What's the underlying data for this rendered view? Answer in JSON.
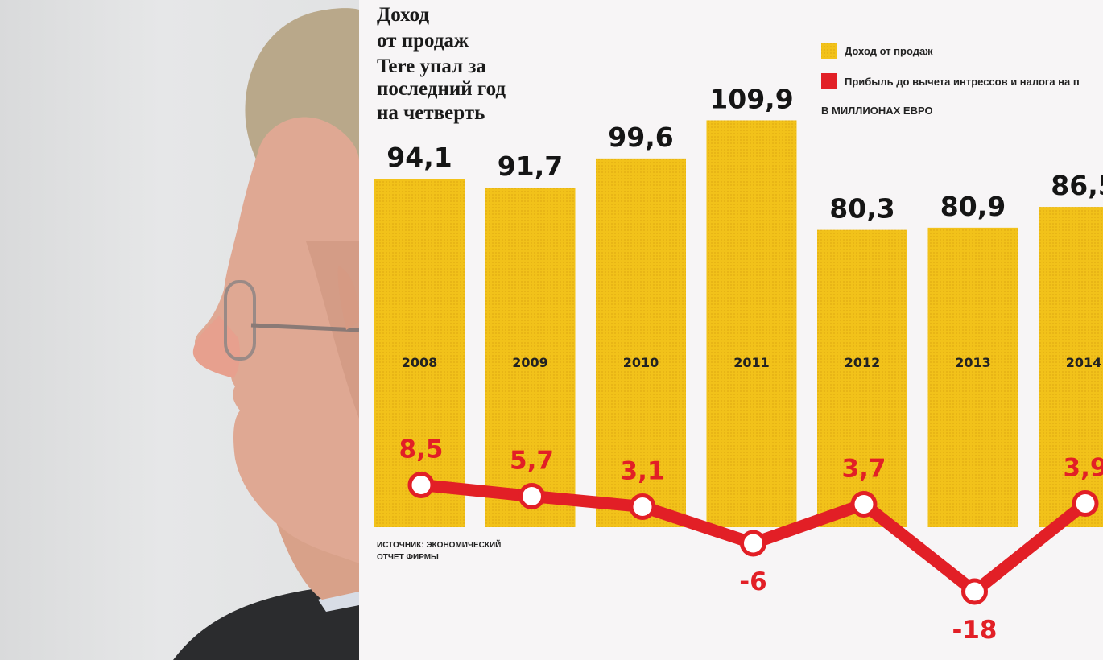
{
  "title_lines": [
    "Доход",
    "от продаж",
    "Tere упал за",
    "последний год",
    "на четверть"
  ],
  "legend": [
    {
      "label": "Доход от продаж",
      "color": "#f2c21a"
    },
    {
      "label": "Прибыль до вычета интрессов и налога на п",
      "color": "#e21f26"
    }
  ],
  "units": "В МИЛЛИОНАХ ЕВРО",
  "source_lines": [
    "ИСТОЧНИК: ЭКОНОМИЧЕСКИЙ",
    "ОТЧЕТ ФИРМЫ"
  ],
  "chart_data": {
    "type": "bar",
    "title": "Доход от продаж Tere упал за последний год на четверть",
    "categories": [
      "2008",
      "2009",
      "2010",
      "2011",
      "2012",
      "2013",
      "2014"
    ],
    "bar_labels": [
      "94,1",
      "91,7",
      "99,6",
      "109,9",
      "80,3",
      "80,9",
      "86,5"
    ],
    "series": [
      {
        "name": "Доход от продаж",
        "type": "bar",
        "values": [
          94.1,
          91.7,
          99.6,
          109.9,
          80.3,
          80.9,
          86.5
        ],
        "color": "#f2c21a"
      },
      {
        "name": "Прибыль до вычета интрессов и налога на п",
        "type": "line",
        "values": [
          8.5,
          5.7,
          3.1,
          -6,
          3.7,
          -18,
          3.9
        ],
        "labels": [
          "8,5",
          "5,7",
          "3,1",
          "-6",
          "3,7",
          "-18",
          "3,9"
        ],
        "color": "#e21f26"
      }
    ],
    "unit": "В МИЛЛИОНАХ ЕВРО"
  }
}
